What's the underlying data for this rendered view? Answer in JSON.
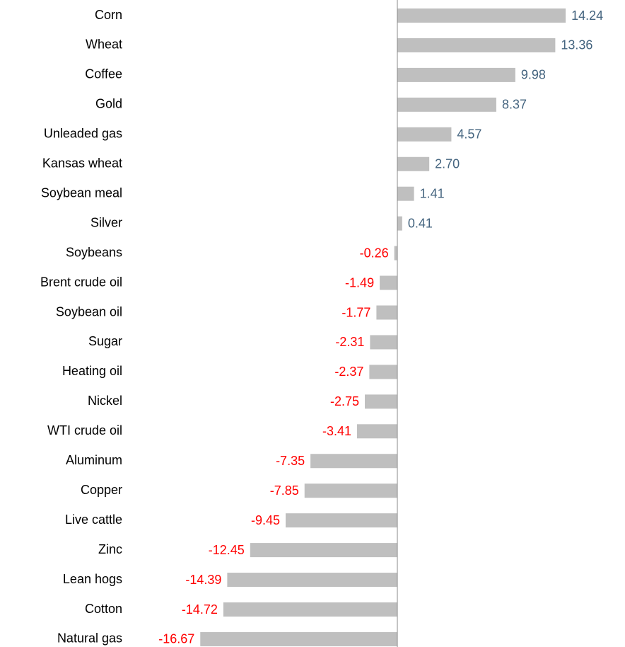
{
  "chart_data": {
    "type": "bar",
    "orientation": "horizontal",
    "categories": [
      "Corn",
      "Wheat",
      "Coffee",
      "Gold",
      "Unleaded gas",
      "Kansas wheat",
      "Soybean meal",
      "Silver",
      "Soybeans",
      "Brent crude oil",
      "Soybean oil",
      "Sugar",
      "Heating oil",
      "Nickel",
      "WTI crude oil",
      "Aluminum",
      "Copper",
      "Live cattle",
      "Zinc",
      "Lean hogs",
      "Cotton",
      "Natural gas"
    ],
    "values": [
      14.24,
      13.36,
      9.98,
      8.37,
      4.57,
      2.7,
      1.41,
      0.41,
      -0.26,
      -1.49,
      -1.77,
      -2.31,
      -2.37,
      -2.75,
      -3.41,
      -7.35,
      -7.85,
      -9.45,
      -12.45,
      -14.39,
      -14.72,
      -16.67
    ],
    "value_labels": [
      "14.24",
      "13.36",
      "9.98",
      "8.37",
      "4.57",
      "2.70",
      "1.41",
      "0.41",
      "-0.26",
      "-1.49",
      "-1.77",
      "-2.31",
      "-2.37",
      "-2.75",
      "-3.41",
      "-7.35",
      "-7.85",
      "-9.45",
      "-12.45",
      "-14.39",
      "-14.72",
      "-16.67"
    ],
    "color": "#bfbfbf",
    "positive_label_color": "#44647f",
    "negative_label_color": "#ff0000"
  }
}
